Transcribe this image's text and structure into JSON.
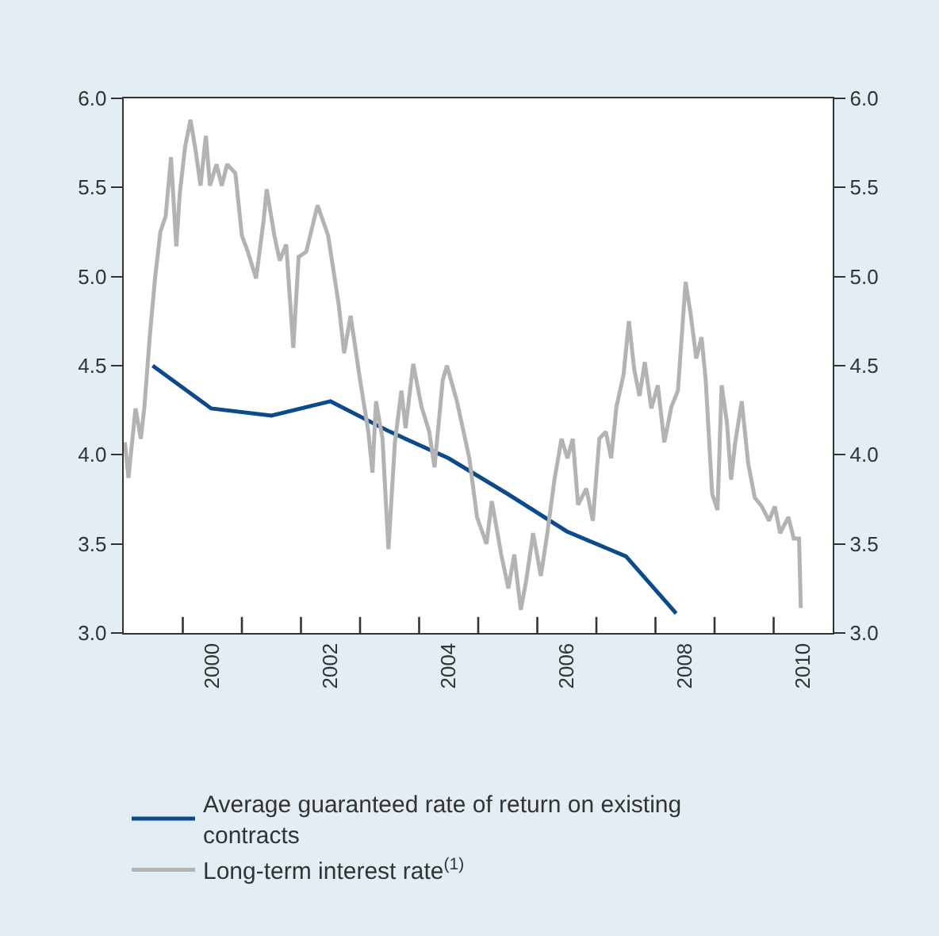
{
  "chart_data": {
    "type": "line",
    "xlim": [
      1999,
      2011
    ],
    "xticks": [
      {
        "value": 2000,
        "label": null
      },
      {
        "value": 2000.5,
        "label": "2000"
      },
      {
        "value": 2001,
        "label": null
      },
      {
        "value": 2002,
        "label": null
      },
      {
        "value": 2002.5,
        "label": "2002"
      },
      {
        "value": 2003,
        "label": null
      },
      {
        "value": 2004,
        "label": null
      },
      {
        "value": 2004.5,
        "label": "2004"
      },
      {
        "value": 2005,
        "label": null
      },
      {
        "value": 2006,
        "label": null
      },
      {
        "value": 2006.5,
        "label": "2006"
      },
      {
        "value": 2007,
        "label": null
      },
      {
        "value": 2008,
        "label": null
      },
      {
        "value": 2008.5,
        "label": "2008"
      },
      {
        "value": 2009,
        "label": null
      },
      {
        "value": 2010,
        "label": null
      },
      {
        "value": 2010.5,
        "label": "2010"
      }
    ],
    "ylim": [
      3.0,
      6.0
    ],
    "yticks": [
      {
        "value": 3.0,
        "label": "3.0"
      },
      {
        "value": 3.5,
        "label": "3.5"
      },
      {
        "value": 4.0,
        "label": "4.0"
      },
      {
        "value": 4.5,
        "label": "4.5"
      },
      {
        "value": 5.0,
        "label": "5.0"
      },
      {
        "value": 5.5,
        "label": "5.5"
      },
      {
        "value": 6.0,
        "label": "6.0"
      }
    ],
    "y2lim": [
      3.0,
      6.0
    ],
    "y2ticks": [
      {
        "value": 3.0,
        "label": "3.0"
      },
      {
        "value": 3.5,
        "label": "3.5"
      },
      {
        "value": 4.0,
        "label": "4.0"
      },
      {
        "value": 4.5,
        "label": "4.5"
      },
      {
        "value": 5.0,
        "label": "5.0"
      },
      {
        "value": 5.5,
        "label": "5.5"
      },
      {
        "value": 6.0,
        "label": "6.0"
      }
    ],
    "legend": "bottom",
    "marker": "none",
    "line_style": "solid",
    "series": [
      {
        "name": "Average guaranteed rate of return on existing contracts",
        "color": "#0b4a8b",
        "x": [
          1999.49,
          2000.48,
          2001.5,
          2002.5,
          2003.5,
          2004.5,
          2005.5,
          2006.5,
          2007.5,
          2008.35
        ],
        "values": [
          4.5,
          4.26,
          4.22,
          4.3,
          4.13,
          3.98,
          3.78,
          3.57,
          3.43,
          3.11
        ]
      },
      {
        "name": "Long-term interest rate$^{(1)}$",
        "color": "#b3b3b3",
        "x": [
          1999.02,
          1999.08,
          1999.2,
          1999.29,
          1999.35,
          1999.44,
          1999.53,
          1999.62,
          1999.71,
          1999.8,
          1999.89,
          1999.95,
          2000.04,
          2000.13,
          2000.22,
          2000.3,
          2000.39,
          2000.46,
          2000.57,
          2000.66,
          2000.75,
          2000.89,
          2001.0,
          2001.1,
          2001.24,
          2001.37,
          2001.42,
          2001.55,
          2001.64,
          2001.75,
          2001.87,
          2001.96,
          2002.09,
          2002.28,
          2002.46,
          2002.64,
          2002.73,
          2002.84,
          2003.0,
          2003.14,
          2003.21,
          2003.27,
          2003.38,
          2003.48,
          2003.59,
          2003.7,
          2003.77,
          2003.9,
          2004.04,
          2004.17,
          2004.26,
          2004.4,
          2004.47,
          2004.64,
          2004.85,
          2004.98,
          2005.14,
          2005.23,
          2005.39,
          2005.51,
          2005.61,
          2005.72,
          2005.81,
          2005.93,
          2006.06,
          2006.17,
          2006.29,
          2006.41,
          2006.51,
          2006.6,
          2006.69,
          2006.83,
          2006.94,
          2007.05,
          2007.16,
          2007.25,
          2007.34,
          2007.46,
          2007.55,
          2007.64,
          2007.73,
          2007.82,
          2007.93,
          2008.04,
          2008.15,
          2008.27,
          2008.38,
          2008.45,
          2008.51,
          2008.6,
          2008.69,
          2008.78,
          2008.85,
          2008.96,
          2009.05,
          2009.12,
          2009.21,
          2009.28,
          2009.35,
          2009.46,
          2009.57,
          2009.68,
          2009.8,
          2009.92,
          2010.02,
          2010.11,
          2010.25,
          2010.34,
          2010.43,
          2010.46
        ],
        "values": [
          4.07,
          3.87,
          4.26,
          4.09,
          4.27,
          4.66,
          4.99,
          5.25,
          5.34,
          5.67,
          5.17,
          5.47,
          5.73,
          5.88,
          5.7,
          5.51,
          5.79,
          5.51,
          5.63,
          5.51,
          5.63,
          5.58,
          5.23,
          5.14,
          4.99,
          5.32,
          5.49,
          5.23,
          5.09,
          5.18,
          4.6,
          5.11,
          5.14,
          5.4,
          5.23,
          4.84,
          4.57,
          4.78,
          4.42,
          4.13,
          3.9,
          4.3,
          4.09,
          3.47,
          4.07,
          4.36,
          4.15,
          4.51,
          4.27,
          4.13,
          3.93,
          4.42,
          4.5,
          4.3,
          3.98,
          3.65,
          3.5,
          3.74,
          3.44,
          3.25,
          3.44,
          3.13,
          3.29,
          3.56,
          3.32,
          3.56,
          3.86,
          4.09,
          3.98,
          4.09,
          3.72,
          3.81,
          3.63,
          4.09,
          4.13,
          3.98,
          4.27,
          4.45,
          4.75,
          4.48,
          4.33,
          4.52,
          4.26,
          4.39,
          4.07,
          4.27,
          4.36,
          4.69,
          4.97,
          4.78,
          4.54,
          4.66,
          4.42,
          3.78,
          3.69,
          4.39,
          4.18,
          3.86,
          4.07,
          4.3,
          3.95,
          3.76,
          3.71,
          3.63,
          3.71,
          3.56,
          3.65,
          3.53,
          3.53,
          3.14
        ]
      }
    ]
  }
}
